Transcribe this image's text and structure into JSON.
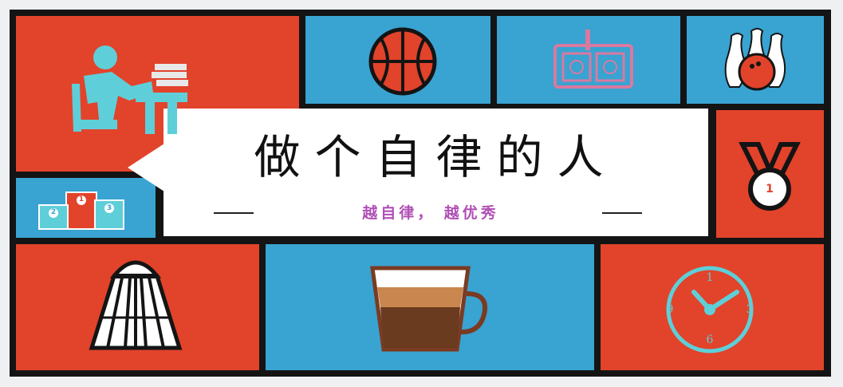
{
  "banner": {
    "title": "做个自律的人",
    "subtitle": "越自律，  越优秀"
  },
  "icons": {
    "clock_numbers": [
      "1",
      "3",
      "6",
      "9"
    ],
    "medal_number": "1",
    "podium_numbers": [
      "1",
      "2",
      "3"
    ]
  },
  "colors": {
    "red": "#e2432b",
    "blue": "#39a3d1",
    "frame": "#141414",
    "subtitle": "#b04fb6"
  }
}
